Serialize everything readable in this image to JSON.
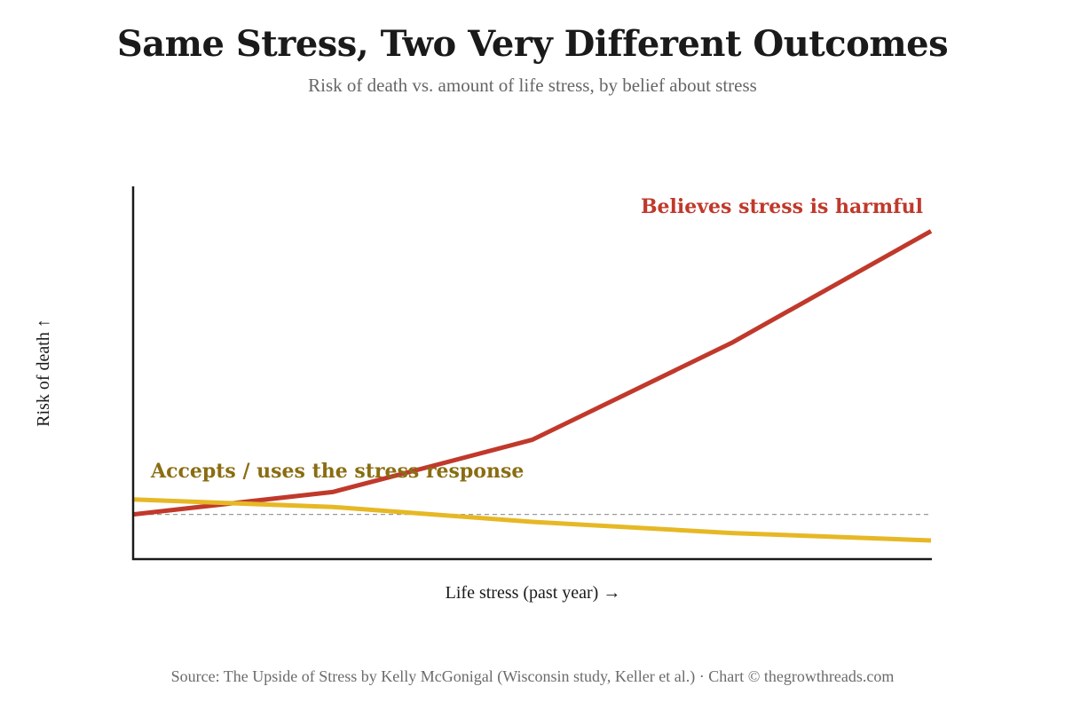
{
  "header": {
    "title": "Same Stress, Two Very Different Outcomes",
    "subtitle": "Risk of death vs. amount of life stress, by belief about stress"
  },
  "footer": {
    "source": "Source: The Upside of Stress by Kelly McGonigal (Wisconsin study, Keller et al.) · Chart © thegrowthreads.com"
  },
  "chart_data": {
    "type": "line",
    "title": "Same Stress, Two Very Different Outcomes",
    "subtitle": "Risk of death vs. amount of life stress, by belief about stress",
    "xlabel": "Life stress (past year) →",
    "ylabel": "Risk of death ↑",
    "x": [
      0,
      1,
      2,
      3,
      4
    ],
    "xlim": [
      0,
      4
    ],
    "ylim": [
      0,
      100
    ],
    "grid": false,
    "ticks_shown": false,
    "baseline": {
      "y": 12,
      "style": "dashed",
      "color": "#999999"
    },
    "series": [
      {
        "name": "Believes stress is harmful",
        "color": "#c0392b",
        "values": [
          12,
          18,
          32,
          58,
          88
        ]
      },
      {
        "name": "Accepts / uses the stress response",
        "color": "#e6b825",
        "label_color": "#8a6d12",
        "values": [
          16,
          14,
          10,
          7,
          5
        ]
      }
    ]
  }
}
